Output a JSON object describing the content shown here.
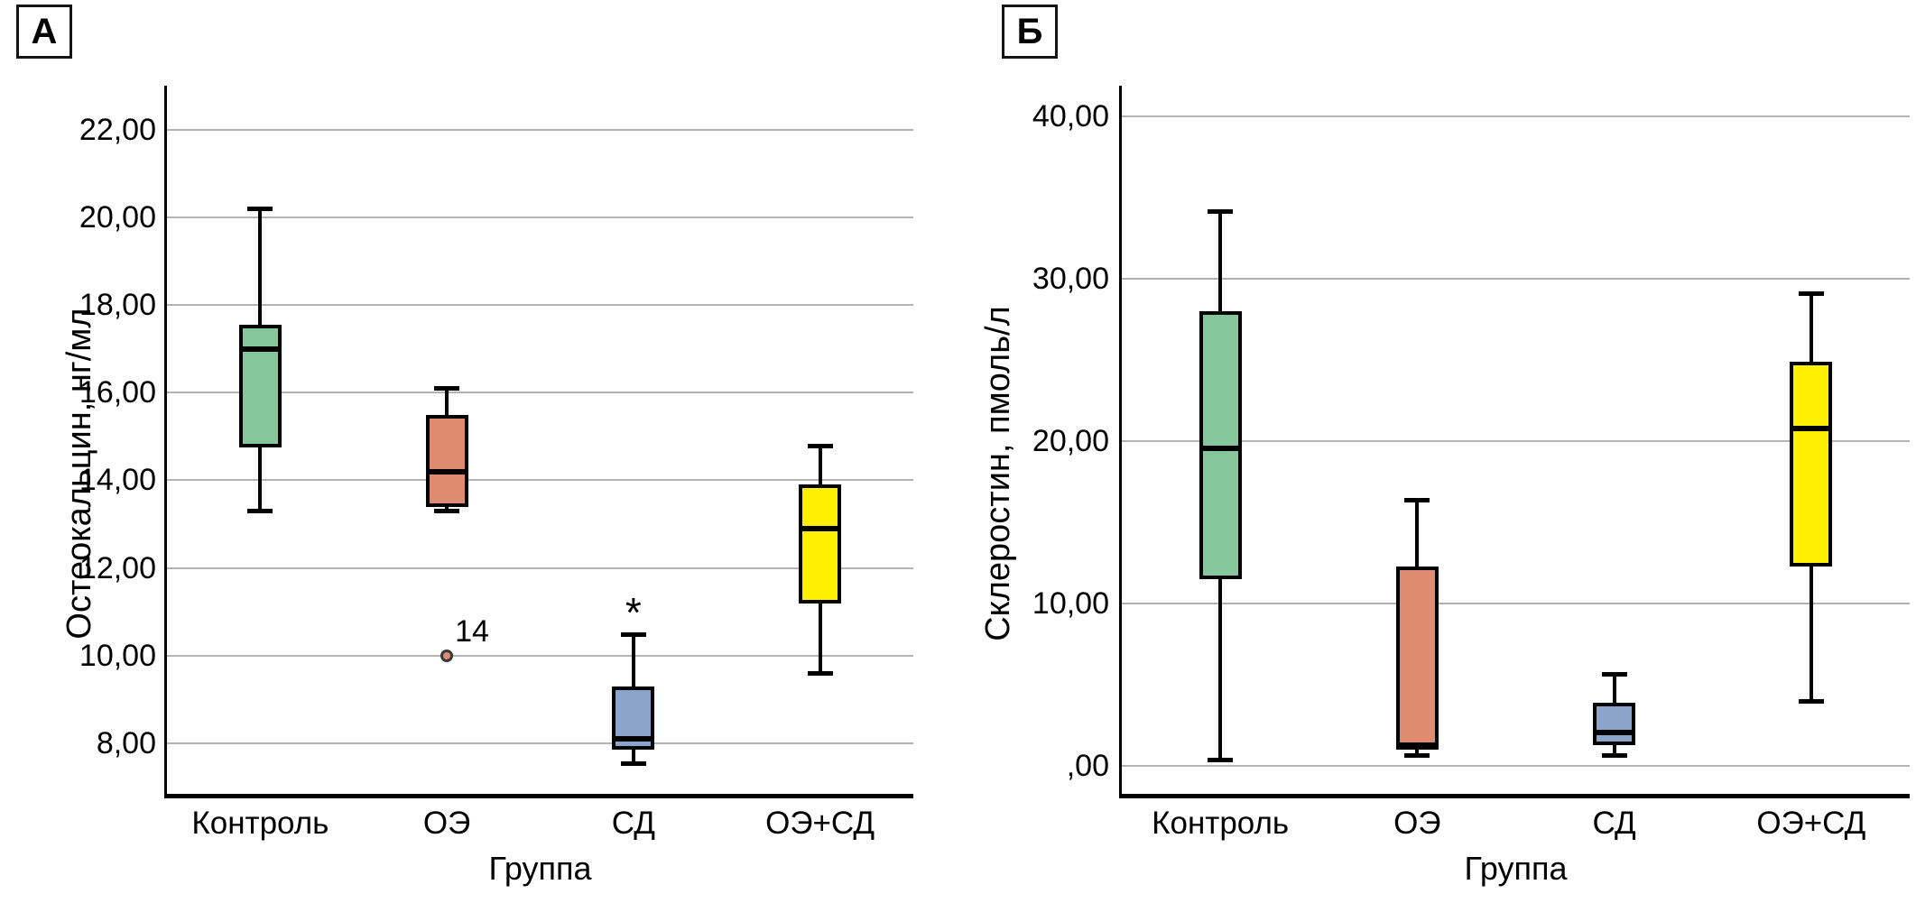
{
  "figure": {
    "background": "#ffffff",
    "colors": {
      "grid": "#b3b3b3",
      "axis": "#000000",
      "box_stroke": "#000000"
    }
  },
  "chart_data": [
    {
      "type": "box",
      "panel_label": "А",
      "ylabel": "Остеокальцин, нг/мл",
      "xlabel": "Группа",
      "categories": [
        "Контроль",
        "ОЭ",
        "СД",
        "ОЭ+СД"
      ],
      "ylim": [
        6.85,
        23.0
      ],
      "yticks": [
        8,
        10,
        12,
        14,
        16,
        18,
        20,
        22
      ],
      "ytick_labels": [
        "8,00",
        "10,00",
        "12,00",
        "14,00",
        "16,00",
        "18,00",
        "20,00",
        "22,00"
      ],
      "grid": true,
      "legend": "none",
      "boxes": [
        {
          "category": "Контроль",
          "color": "#85c79b",
          "min": 13.3,
          "q1": 14.75,
          "median": 17.0,
          "q3": 17.55,
          "max": 20.2
        },
        {
          "category": "ОЭ",
          "color": "#de8b71",
          "min": 13.3,
          "q1": 13.4,
          "median": 14.2,
          "q3": 15.5,
          "max": 16.1,
          "outliers": [
            {
              "value": 10.0,
              "label": "14"
            }
          ]
        },
        {
          "category": "СД",
          "color": "#8da4ca",
          "min": 7.55,
          "q1": 7.85,
          "median": 8.1,
          "q3": 9.3,
          "max": 10.5,
          "annotation": {
            "text": "*",
            "value": 11.05
          }
        },
        {
          "category": "ОЭ+СД",
          "color": "#ffef00",
          "min": 9.6,
          "q1": 11.2,
          "median": 12.9,
          "q3": 13.9,
          "max": 14.8
        }
      ]
    },
    {
      "type": "box",
      "panel_label": "Б",
      "ylabel": "Склеростин, пмоль/л",
      "xlabel": "Группа",
      "categories": [
        "Контроль",
        "ОЭ",
        "СД",
        "ОЭ+СД"
      ],
      "ylim": [
        -1.7,
        41.9
      ],
      "yticks": [
        0,
        10,
        20,
        30,
        40
      ],
      "ytick_labels": [
        ",00",
        "10,00",
        "20,00",
        "30,00",
        "40,00"
      ],
      "grid": true,
      "legend": "none",
      "boxes": [
        {
          "category": "Контроль",
          "color": "#85c79b",
          "min": 0.4,
          "q1": 11.5,
          "median": 19.6,
          "q3": 28.0,
          "max": 34.2
        },
        {
          "category": "ОЭ",
          "color": "#de8b71",
          "min": 0.7,
          "q1": 1.0,
          "median": 1.3,
          "q3": 12.3,
          "max": 16.4
        },
        {
          "category": "СД",
          "color": "#8da4ca",
          "min": 0.7,
          "q1": 1.3,
          "median": 2.1,
          "q3": 3.9,
          "max": 5.7
        },
        {
          "category": "ОЭ+СД",
          "color": "#ffef00",
          "min": 4.0,
          "q1": 12.3,
          "median": 20.8,
          "q3": 24.9,
          "max": 29.1
        }
      ]
    }
  ]
}
